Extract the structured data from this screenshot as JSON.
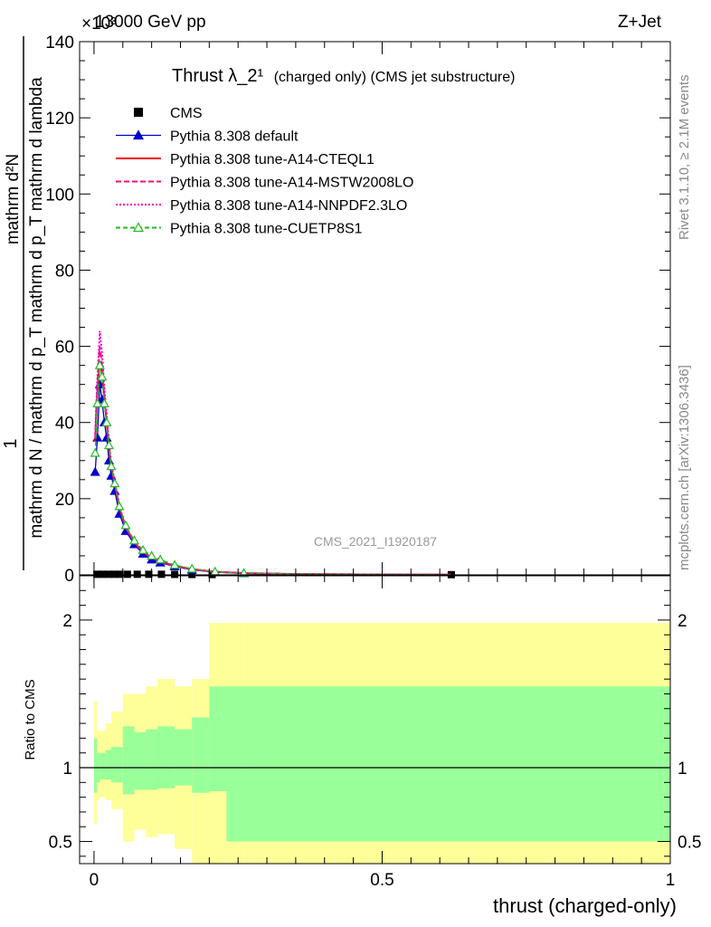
{
  "header": {
    "energy_label": "13000 GeV pp",
    "process_label": "Z+Jet",
    "exponent_label": "×10³"
  },
  "side_labels": {
    "rivet": "Rivet 3.1.10, ≥ 2.1M events",
    "mcplots": "mcplots.cern.ch [arXiv:1306.3436]"
  },
  "watermark": "CMS_2021_I1920187",
  "chart_data": [
    {
      "type": "line",
      "title": "Thrust λ_2¹",
      "title_suffix": "(charged only) (CMS jet substructure)",
      "xlabel": "thrust (charged-only)",
      "ylabel_numerator": "1",
      "ylabel_denominator": "mathrm d N / mathrm d p_T mathrm d p_T mathrm d lambda",
      "ylabel_extra": "mathrm d²N",
      "xlim": [
        -0.025,
        1.0
      ],
      "ylim": [
        0,
        140
      ],
      "x_ticks": [
        0,
        0.5,
        1
      ],
      "x_tick_labels": [
        "0",
        "0.5",
        "1"
      ],
      "y_ticks": [
        0,
        20,
        40,
        60,
        80,
        100,
        120,
        140
      ],
      "y_tick_labels": [
        "0",
        "20",
        "40",
        "60",
        "80",
        "100",
        "120",
        "140"
      ],
      "grid": false,
      "legend_position": "top-left",
      "series": [
        {
          "name": "CMS",
          "color": "#000000",
          "style": "data-points",
          "x": [
            0.005,
            0.015,
            0.025,
            0.035,
            0.045,
            0.058,
            0.075,
            0.095,
            0.117,
            0.14,
            0.17,
            0.205,
            0.62
          ],
          "y": [
            0.15,
            0.15,
            0.15,
            0.15,
            0.15,
            0.15,
            0.15,
            0.15,
            0.15,
            0.12,
            0.1,
            0.08,
            0.05
          ]
        },
        {
          "name": "Pythia 8.308 default",
          "color": "#0000cc",
          "style": "solid-triangle",
          "x": [
            0.002,
            0.006,
            0.01,
            0.014,
            0.018,
            0.022,
            0.026,
            0.03,
            0.036,
            0.044,
            0.055,
            0.07,
            0.085,
            0.1,
            0.115,
            0.14,
            0.17,
            0.21,
            0.26,
            0.35,
            0.5,
            0.62
          ],
          "y": [
            27,
            36,
            50,
            46,
            40,
            36,
            30,
            26,
            22,
            16,
            11.5,
            8,
            5.5,
            4,
            3.2,
            2.2,
            1.3,
            0.7,
            0.4,
            0.2,
            0.1,
            0.05
          ]
        },
        {
          "name": "Pythia 8.308 tune-A14-CTEQL1",
          "color": "#ee0000",
          "style": "solid",
          "x": [
            0.002,
            0.006,
            0.01,
            0.014,
            0.018,
            0.022,
            0.026,
            0.03,
            0.036,
            0.044,
            0.055,
            0.07,
            0.085,
            0.1,
            0.115,
            0.14,
            0.17,
            0.21,
            0.26,
            0.35,
            0.5,
            0.62
          ],
          "y": [
            35,
            48,
            56,
            53,
            46,
            40,
            33,
            28,
            24,
            17.5,
            12.5,
            8.5,
            6,
            4.5,
            3.5,
            2.4,
            1.5,
            0.8,
            0.45,
            0.22,
            0.1,
            0.05
          ]
        },
        {
          "name": "Pythia 8.308 tune-A14-MSTW2008LO",
          "color": "#ee1177",
          "style": "dashed",
          "x": [
            0.002,
            0.006,
            0.01,
            0.014,
            0.018,
            0.022,
            0.026,
            0.03,
            0.036,
            0.044,
            0.055,
            0.07,
            0.085,
            0.1,
            0.115,
            0.14,
            0.17,
            0.21,
            0.26,
            0.35,
            0.5,
            0.62
          ],
          "y": [
            36,
            50,
            60,
            55,
            47,
            41,
            34,
            28.5,
            24,
            18,
            12.5,
            8.5,
            6,
            4.5,
            3.5,
            2.4,
            1.5,
            0.8,
            0.45,
            0.22,
            0.1,
            0.05
          ]
        },
        {
          "name": "Pythia 8.308 tune-A14-NNPDF2.3LO",
          "color": "#ee00cc",
          "style": "dotted",
          "x": [
            0.002,
            0.006,
            0.01,
            0.014,
            0.018,
            0.022,
            0.026,
            0.03,
            0.036,
            0.044,
            0.055,
            0.07,
            0.085,
            0.1,
            0.115,
            0.14,
            0.17,
            0.21,
            0.26,
            0.35,
            0.5,
            0.62
          ],
          "y": [
            37,
            52,
            64,
            58,
            49,
            42,
            35,
            29,
            24.5,
            18,
            12.5,
            8.5,
            6,
            4.5,
            3.5,
            2.4,
            1.5,
            0.8,
            0.45,
            0.22,
            0.1,
            0.05
          ]
        },
        {
          "name": "Pythia 8.308 tune-CUETP8S1",
          "color": "#22bb22",
          "style": "dashed-open-triangle",
          "x": [
            0.002,
            0.006,
            0.01,
            0.014,
            0.018,
            0.022,
            0.026,
            0.03,
            0.036,
            0.044,
            0.055,
            0.07,
            0.085,
            0.1,
            0.115,
            0.14,
            0.17,
            0.21,
            0.26,
            0.35,
            0.5,
            0.62
          ],
          "y": [
            32,
            45,
            55,
            52,
            45,
            40,
            34,
            28.5,
            24,
            18,
            13,
            9,
            6.5,
            5,
            4,
            2.6,
            1.6,
            0.85,
            0.45,
            0.22,
            0.1,
            0.05
          ]
        }
      ]
    },
    {
      "type": "area",
      "ylabel": "Ratio to CMS",
      "xlim": [
        -0.025,
        1.0
      ],
      "ylim": [
        0.35,
        2.3
      ],
      "y_ticks": [
        0.5,
        1,
        2
      ],
      "y_tick_labels": [
        "0.5",
        "1",
        "2"
      ],
      "reference_line": 1,
      "bands": [
        {
          "name": "inner",
          "color": "#99ff99",
          "edges": [
            0,
            0.005,
            0.01,
            0.02,
            0.03,
            0.05,
            0.07,
            0.09,
            0.11,
            0.14,
            0.17,
            0.2,
            0.23,
            0.26,
            1.0
          ],
          "low": [
            0.83,
            0.9,
            0.92,
            0.92,
            0.9,
            0.82,
            0.85,
            0.85,
            0.86,
            0.88,
            0.83,
            0.84,
            0.5,
            0.5
          ],
          "high": [
            1.2,
            1.1,
            1.1,
            1.12,
            1.14,
            1.28,
            1.24,
            1.26,
            1.28,
            1.26,
            1.34,
            1.55,
            1.55,
            1.55
          ]
        },
        {
          "name": "outer",
          "color": "#ffff99",
          "edges": [
            0,
            0.005,
            0.01,
            0.02,
            0.03,
            0.05,
            0.07,
            0.09,
            0.11,
            0.14,
            0.17,
            0.2,
            0.23,
            0.26,
            1.0
          ],
          "low": [
            0.62,
            0.78,
            0.8,
            0.78,
            0.72,
            0.5,
            0.58,
            0.53,
            0.55,
            0.45,
            0.32,
            0.25,
            0.25,
            0.25
          ],
          "high": [
            1.45,
            1.25,
            1.25,
            1.3,
            1.38,
            1.5,
            1.5,
            1.55,
            1.6,
            1.55,
            1.6,
            1.98,
            1.98,
            1.98
          ]
        }
      ]
    }
  ]
}
